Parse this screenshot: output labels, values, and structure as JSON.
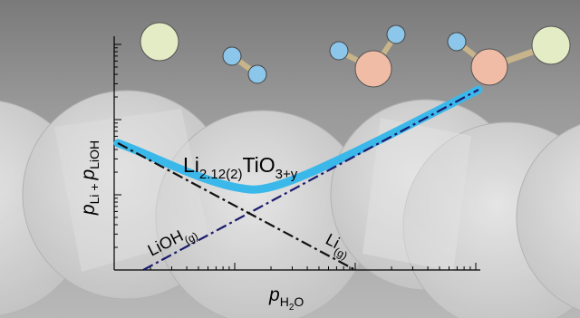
{
  "axes": {
    "y_label": {
      "base": "p",
      "sub1": "Li",
      "plus": " + ",
      "base2": "p",
      "sub2": "LiOH"
    },
    "x_label": {
      "base": "p",
      "sub": "H",
      "sub_digit": "2",
      "tail": "O"
    },
    "x_scale": "log",
    "y_scale": "log",
    "ticks_labeled": false
  },
  "curve_labels": {
    "total": {
      "main": "Li",
      "sub": "2.12(2)",
      "mid": "TiO",
      "sub2": "3+y"
    },
    "lioh": {
      "main": "LiOH",
      "sub": "(g)"
    },
    "li": {
      "main": "Li",
      "sub": "(g)"
    }
  },
  "colors": {
    "total_curve": "#3bb8ea",
    "lioh_line": "#1a1a6e",
    "li_line": "#111111",
    "atom_li": "#e4ecc6",
    "atom_h": "#8cc6ea",
    "atom_o": "#f0bca6",
    "bond": "#c8b48a",
    "background_spheres": "#d8d8d8"
  },
  "molecules": [
    {
      "name": "li-atom",
      "atoms": [
        "Li"
      ]
    },
    {
      "name": "h2-molecule",
      "atoms": [
        "H",
        "H"
      ]
    },
    {
      "name": "h2o-molecule",
      "atoms": [
        "H",
        "O",
        "H"
      ]
    },
    {
      "name": "lioh-molecule",
      "atoms": [
        "H",
        "O",
        "Li"
      ]
    }
  ]
}
